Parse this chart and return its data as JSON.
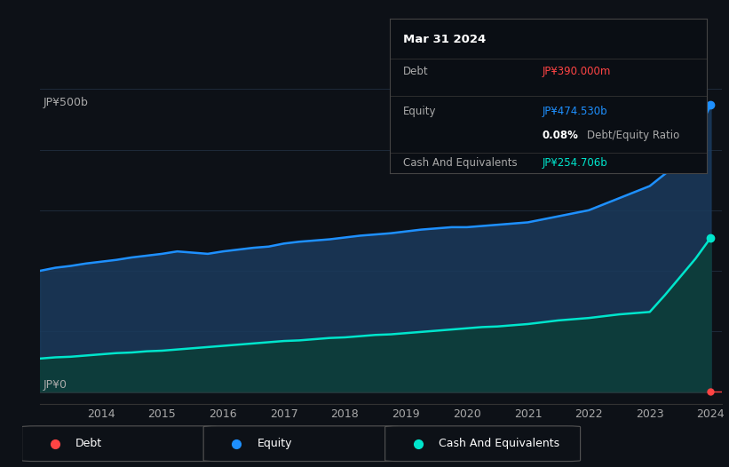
{
  "bg_color": "#0d1117",
  "plot_bg_color": "#0d1117",
  "tooltip": {
    "date": "Mar 31 2024",
    "debt_label": "Debt",
    "debt_value": "JP¥390.000m",
    "debt_color": "#ff4444",
    "equity_label": "Equity",
    "equity_value": "JP¥474.530b",
    "equity_color": "#1e90ff",
    "ratio_value": "0.08%",
    "ratio_label": "Debt/Equity Ratio",
    "cash_label": "Cash And Equivalents",
    "cash_value": "JP¥254.706b",
    "cash_color": "#00e5cc"
  },
  "y_label_top": "JP¥500b",
  "y_label_bottom": "JP¥0",
  "x_ticks": [
    2014,
    2015,
    2016,
    2017,
    2018,
    2019,
    2020,
    2021,
    2022,
    2023,
    2024
  ],
  "equity_color": "#1e90ff",
  "equity_fill_color": "#1a3a5c",
  "cash_color": "#00e5cc",
  "cash_fill_color": "#0d3d3a",
  "debt_color": "#ff4444",
  "grid_color": "#1e2a3a",
  "legend": [
    {
      "label": "Debt",
      "color": "#ff4444"
    },
    {
      "label": "Equity",
      "color": "#1e90ff"
    },
    {
      "label": "Cash And Equivalents",
      "color": "#00e5cc"
    }
  ],
  "years": [
    2013.0,
    2013.25,
    2013.5,
    2013.75,
    2014.0,
    2014.25,
    2014.5,
    2014.75,
    2015.0,
    2015.25,
    2015.5,
    2015.75,
    2016.0,
    2016.25,
    2016.5,
    2016.75,
    2017.0,
    2017.25,
    2017.5,
    2017.75,
    2018.0,
    2018.25,
    2018.5,
    2018.75,
    2019.0,
    2019.25,
    2019.5,
    2019.75,
    2020.0,
    2020.25,
    2020.5,
    2020.75,
    2021.0,
    2021.25,
    2021.5,
    2021.75,
    2022.0,
    2022.25,
    2022.5,
    2022.75,
    2023.0,
    2023.25,
    2023.5,
    2023.75,
    2024.0
  ],
  "equity": [
    200,
    205,
    208,
    212,
    215,
    218,
    222,
    225,
    228,
    232,
    230,
    228,
    232,
    235,
    238,
    240,
    245,
    248,
    250,
    252,
    255,
    258,
    260,
    262,
    265,
    268,
    270,
    272,
    272,
    274,
    276,
    278,
    280,
    285,
    290,
    295,
    300,
    310,
    320,
    330,
    340,
    360,
    380,
    420,
    474.53
  ],
  "cash": [
    55,
    57,
    58,
    60,
    62,
    64,
    65,
    67,
    68,
    70,
    72,
    74,
    76,
    78,
    80,
    82,
    84,
    85,
    87,
    89,
    90,
    92,
    94,
    95,
    97,
    99,
    101,
    103,
    105,
    107,
    108,
    110,
    112,
    115,
    118,
    120,
    122,
    125,
    128,
    130,
    132,
    160,
    190,
    220,
    254.706
  ],
  "debt_flat": 0.39
}
